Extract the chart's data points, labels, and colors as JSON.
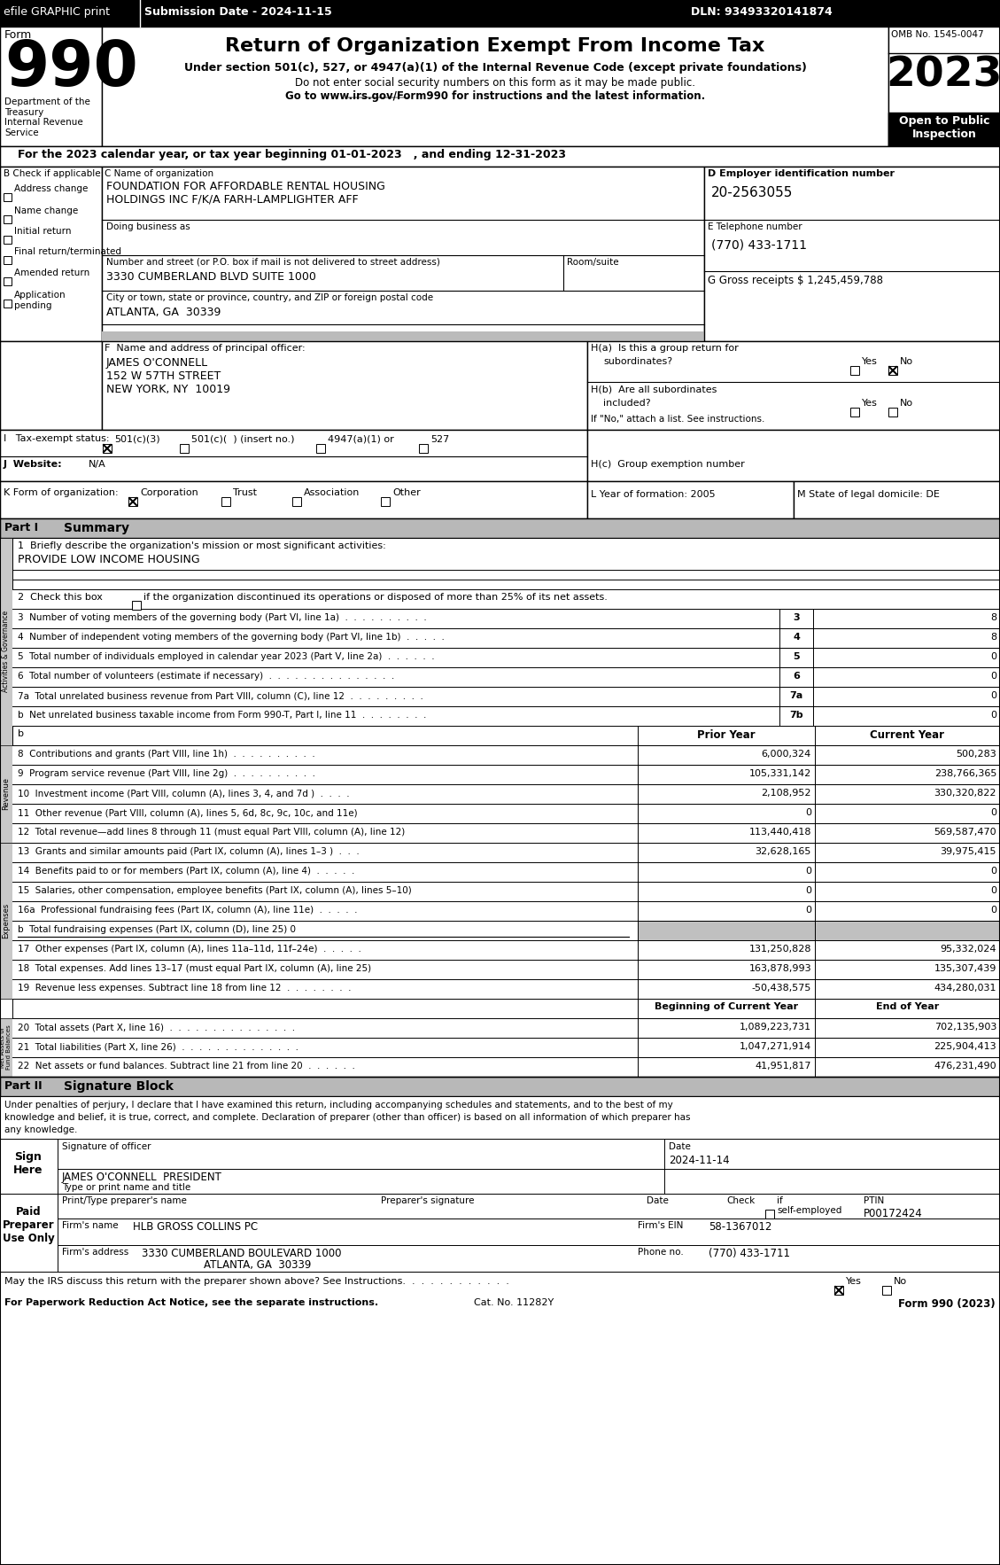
{
  "title": "Return of Organization Exempt From Income Tax",
  "subtitle1": "Under section 501(c), 527, or 4947(a)(1) of the Internal Revenue Code (except private foundations)",
  "subtitle2": "Do not enter social security numbers on this form as it may be made public.",
  "subtitle3": "Go to www.irs.gov/Form990 for instructions and the latest information.",
  "omb": "OMB No. 1545-0047",
  "year": "2023",
  "open_to_public": "Open to Public\nInspection",
  "dept_treasury": "Department of the\nTreasury\nInternal Revenue\nService",
  "tax_year_line": "For the 2023 calendar year, or tax year beginning 01-01-2023   , and ending 12-31-2023",
  "checkboxes_b": [
    "Address change",
    "Name change",
    "Initial return",
    "Final return/terminated",
    "Amended return",
    "Application\npending"
  ],
  "org_name1": "FOUNDATION FOR AFFORDABLE RENTAL HOUSING",
  "org_name2": "HOLDINGS INC F/K/A FARH-LAMPLIGHTER AFF",
  "doing_business": "Doing business as",
  "address_label": "Number and street (or P.O. box if mail is not delivered to street address)",
  "room_suite": "Room/suite",
  "address_val": "3330 CUMBERLAND BLVD SUITE 1000",
  "city_label": "City or town, state or province, country, and ZIP or foreign postal code",
  "city_val": "ATLANTA, GA  30339",
  "ein_label": "D Employer identification number",
  "ein": "20-2563055",
  "e_label": "E Telephone number",
  "phone": "(770) 433-1711",
  "gross_receipts": "1,245,459,788",
  "f_label": "F  Name and address of principal officer:",
  "officer_name": "JAMES O'CONNELL",
  "officer_addr1": "152 W 57TH STREET",
  "officer_addr2": "NEW YORK, NY  10019",
  "col_prior": "Prior Year",
  "col_current": "Current Year",
  "line8_prior": "6,000,324",
  "line8_current": "500,283",
  "line9_prior": "105,331,142",
  "line9_current": "238,766,365",
  "line10_prior": "2,108,952",
  "line10_current": "330,320,822",
  "line11_prior": "0",
  "line11_current": "0",
  "line12_prior": "113,440,418",
  "line12_current": "569,587,470",
  "line13_prior": "32,628,165",
  "line13_current": "39,975,415",
  "line14_prior": "0",
  "line14_current": "0",
  "line15_prior": "0",
  "line15_current": "0",
  "line16a_prior": "0",
  "line16a_current": "0",
  "line17_prior": "131,250,828",
  "line17_current": "95,332,024",
  "line18_prior": "163,878,993",
  "line18_current": "135,307,439",
  "line19_prior": "-50,438,575",
  "line19_current": "434,280,031",
  "col_begin": "Beginning of Current Year",
  "col_end": "End of Year",
  "line20_begin": "1,089,223,731",
  "line20_end": "702,135,903",
  "line21_begin": "1,047,271,914",
  "line21_end": "225,904,413",
  "line22_begin": "41,951,817",
  "line22_end": "476,231,490",
  "sig_text1": "Under penalties of perjury, I declare that I have examined this return, including accompanying schedules and statements, and to the best of my",
  "sig_text2": "knowledge and belief, it is true, correct, and complete. Declaration of preparer (other than officer) is based on all information of which preparer has",
  "sig_text3": "any knowledge.",
  "sig_date_val": "2024-11-14",
  "sig_officer_name": "JAMES O'CONNELL  PRESIDENT",
  "preparer_ptin_val": "P00172424",
  "firm_name_val": "HLB GROSS COLLINS PC",
  "firm_ein_val": "58-1367012",
  "firm_addr_val": "3330 CUMBERLAND BOULEVARD 1000",
  "firm_city_val": "ATLANTA, GA  30339",
  "firm_phone_val": "(770) 433-1711",
  "may_discuss": "May the IRS discuss this return with the preparer shown above? See Instructions.  .  .  .  .  .  .  .  .  .  .  .",
  "paperwork_note": "For Paperwork Reduction Act Notice, see the separate instructions.",
  "cat_no": "Cat. No. 11282Y",
  "form_footer": "Form 990 (2023)"
}
